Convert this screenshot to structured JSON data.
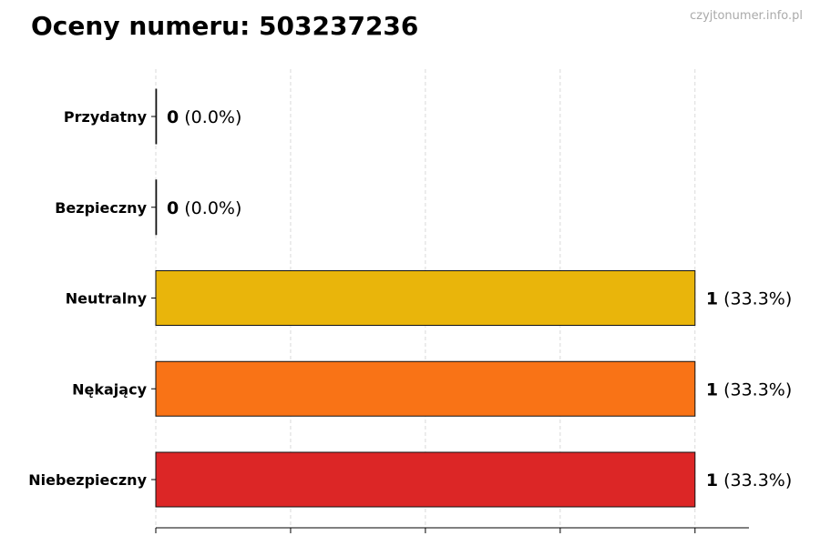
{
  "title": "Oceny numeru: 503237236",
  "watermark": "czyjtonumer.info.pl",
  "chart_data": {
    "type": "bar",
    "orientation": "horizontal",
    "title": "Oceny numeru: 503237236",
    "categories": [
      "Przydatny",
      "Bezpieczny",
      "Neutralny",
      "Nękający",
      "Niebezpieczny"
    ],
    "values": [
      0,
      0,
      1,
      1,
      1
    ],
    "value_labels": [
      "0",
      "0",
      "1",
      "1",
      "1"
    ],
    "percent_labels": [
      "(0.0%)",
      "(0.0%)",
      "(33.3%)",
      "(33.3%)",
      "(33.3%)"
    ],
    "colors": [
      "#22C55E",
      "#3B82F6",
      "#E9B50B",
      "#F97316",
      "#DC2626"
    ],
    "xlim": [
      0,
      1.1
    ],
    "xticks": [
      0,
      0.25,
      0.5,
      0.75,
      1.0
    ],
    "xtick_labels_shown": false,
    "grid": "vertical dashed",
    "xlabel": "",
    "ylabel": ""
  }
}
